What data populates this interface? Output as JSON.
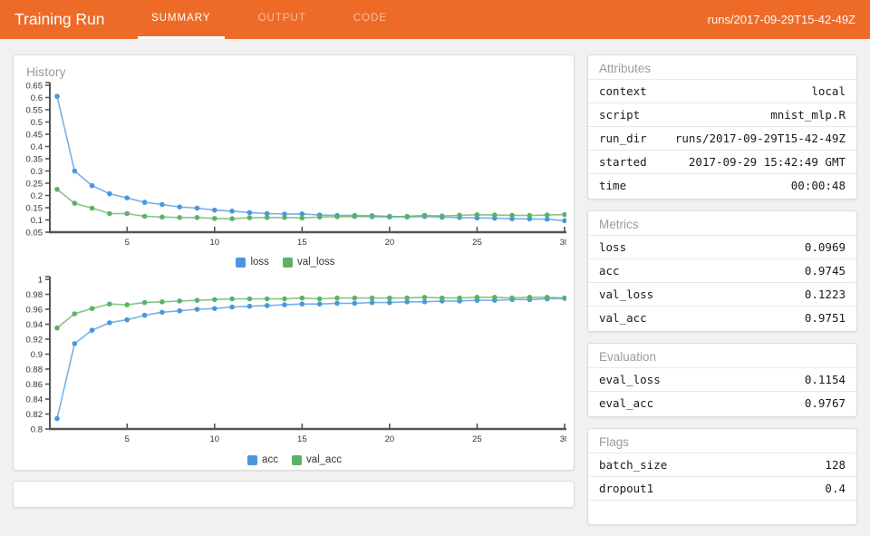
{
  "header": {
    "title": "Training Run",
    "tabs": [
      {
        "label": "SUMMARY",
        "active": true
      },
      {
        "label": "OUTPUT",
        "active": false
      },
      {
        "label": "CODE",
        "active": false
      }
    ],
    "run_id": "runs/2017-09-29T15-42-49Z"
  },
  "colors": {
    "header_bg": "#ed6b27",
    "series_blue": "#4a97dd",
    "series_green": "#5cb266",
    "axis_line": "#555555",
    "tick_label": "#333333"
  },
  "history": {
    "title": "History"
  },
  "chart_data": [
    {
      "type": "line",
      "name": "loss-history",
      "x": [
        1,
        2,
        3,
        4,
        5,
        6,
        7,
        8,
        9,
        10,
        11,
        12,
        13,
        14,
        15,
        16,
        17,
        18,
        19,
        20,
        21,
        22,
        23,
        24,
        25,
        26,
        27,
        28,
        29,
        30
      ],
      "series": [
        {
          "name": "loss",
          "color": "#4a97dd",
          "values": [
            0.605,
            0.3,
            0.24,
            0.207,
            0.19,
            0.172,
            0.163,
            0.153,
            0.148,
            0.14,
            0.136,
            0.13,
            0.126,
            0.124,
            0.125,
            0.12,
            0.118,
            0.118,
            0.117,
            0.115,
            0.112,
            0.114,
            0.111,
            0.11,
            0.108,
            0.107,
            0.105,
            0.104,
            0.103,
            0.097
          ]
        },
        {
          "name": "val_loss",
          "color": "#5cb266",
          "values": [
            0.225,
            0.168,
            0.148,
            0.126,
            0.126,
            0.115,
            0.112,
            0.11,
            0.11,
            0.106,
            0.105,
            0.109,
            0.11,
            0.11,
            0.108,
            0.112,
            0.113,
            0.114,
            0.113,
            0.112,
            0.115,
            0.119,
            0.116,
            0.119,
            0.121,
            0.12,
            0.119,
            0.118,
            0.12,
            0.122
          ]
        }
      ],
      "ylim": [
        0.05,
        0.65
      ],
      "ytick_step": 0.05,
      "xticks": [
        5,
        10,
        15,
        20,
        25,
        30
      ],
      "legend_position": "bottom",
      "grid": false
    },
    {
      "type": "line",
      "name": "accuracy-history",
      "x": [
        1,
        2,
        3,
        4,
        5,
        6,
        7,
        8,
        9,
        10,
        11,
        12,
        13,
        14,
        15,
        16,
        17,
        18,
        19,
        20,
        21,
        22,
        23,
        24,
        25,
        26,
        27,
        28,
        29,
        30
      ],
      "series": [
        {
          "name": "acc",
          "color": "#4a97dd",
          "values": [
            0.814,
            0.914,
            0.932,
            0.942,
            0.946,
            0.952,
            0.956,
            0.958,
            0.96,
            0.961,
            0.963,
            0.964,
            0.965,
            0.966,
            0.967,
            0.967,
            0.968,
            0.968,
            0.969,
            0.969,
            0.97,
            0.97,
            0.971,
            0.971,
            0.972,
            0.972,
            0.973,
            0.973,
            0.974,
            0.9745
          ]
        },
        {
          "name": "val_acc",
          "color": "#5cb266",
          "values": [
            0.935,
            0.954,
            0.961,
            0.967,
            0.966,
            0.969,
            0.97,
            0.971,
            0.972,
            0.973,
            0.974,
            0.974,
            0.974,
            0.974,
            0.975,
            0.974,
            0.975,
            0.975,
            0.975,
            0.975,
            0.975,
            0.976,
            0.975,
            0.975,
            0.976,
            0.976,
            0.975,
            0.976,
            0.976,
            0.9751
          ]
        }
      ],
      "ylim": [
        0.8,
        1.0
      ],
      "ytick_step": 0.02,
      "xticks": [
        5,
        10,
        15,
        20,
        25,
        30
      ],
      "legend_position": "bottom",
      "grid": false
    }
  ],
  "cards": [
    {
      "title": "Attributes",
      "rows": [
        {
          "key": "context",
          "value": "local"
        },
        {
          "key": "script",
          "value": "mnist_mlp.R"
        },
        {
          "key": "run_dir",
          "value": "runs/2017-09-29T15-42-49Z"
        },
        {
          "key": "started",
          "value": "2017-09-29 15:42:49 GMT"
        },
        {
          "key": "time",
          "value": "00:00:48"
        }
      ],
      "truncated": false
    },
    {
      "title": "Metrics",
      "rows": [
        {
          "key": "loss",
          "value": "0.0969"
        },
        {
          "key": "acc",
          "value": "0.9745"
        },
        {
          "key": "val_loss",
          "value": "0.1223"
        },
        {
          "key": "val_acc",
          "value": "0.9751"
        }
      ],
      "truncated": false
    },
    {
      "title": "Evaluation",
      "rows": [
        {
          "key": "eval_loss",
          "value": "0.1154"
        },
        {
          "key": "eval_acc",
          "value": "0.9767"
        }
      ],
      "truncated": false
    },
    {
      "title": "Flags",
      "rows": [
        {
          "key": "batch_size",
          "value": "128"
        },
        {
          "key": "dropout1",
          "value": "0.4"
        }
      ],
      "truncated": true
    }
  ]
}
